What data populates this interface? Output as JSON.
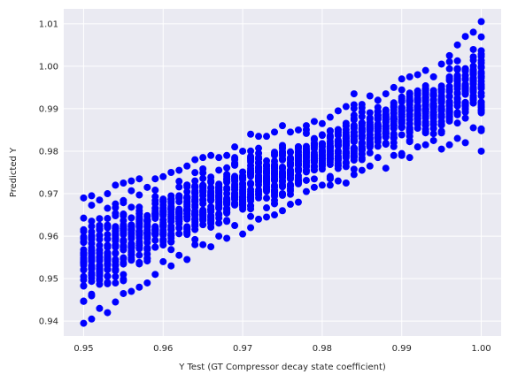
{
  "chart_data": {
    "type": "scatter",
    "title": "",
    "xlabel": "Y Test (GT Compressor decay state coefficient)",
    "ylabel": "Predicted Y",
    "xlim": [
      0.9475,
      1.0025
    ],
    "ylim": [
      0.9365,
      1.0135
    ],
    "xticks": [
      0.95,
      0.96,
      0.97,
      0.98,
      0.99,
      1.0
    ],
    "xtick_labels": [
      "0.95",
      "0.96",
      "0.97",
      "0.98",
      "0.99",
      "1.00"
    ],
    "yticks": [
      0.94,
      0.95,
      0.96,
      0.97,
      0.98,
      0.99,
      1.0,
      1.01
    ],
    "ytick_labels": [
      "0.94",
      "0.95",
      "0.96",
      "0.97",
      "0.98",
      "0.99",
      "1.00",
      "1.01"
    ],
    "grid": true,
    "style": "seaborn-darkgrid",
    "marker_color": "#0000ff",
    "background_color": "#eaeaf2",
    "x_levels": [
      0.95,
      0.951,
      0.952,
      0.953,
      0.954,
      0.955,
      0.956,
      0.957,
      0.958,
      0.959,
      0.96,
      0.961,
      0.962,
      0.963,
      0.964,
      0.965,
      0.966,
      0.967,
      0.968,
      0.969,
      0.97,
      0.971,
      0.972,
      0.973,
      0.974,
      0.975,
      0.976,
      0.977,
      0.978,
      0.979,
      0.98,
      0.981,
      0.982,
      0.983,
      0.984,
      0.985,
      0.986,
      0.987,
      0.988,
      0.989,
      0.99,
      0.991,
      0.992,
      0.993,
      0.994,
      0.995,
      0.996,
      0.997,
      0.998,
      0.999,
      1.0
    ],
    "y_min": [
      0.9395,
      0.9405,
      0.943,
      0.942,
      0.9445,
      0.9465,
      0.947,
      0.948,
      0.949,
      0.951,
      0.954,
      0.953,
      0.9555,
      0.9545,
      0.958,
      0.958,
      0.9575,
      0.96,
      0.9595,
      0.9625,
      0.9605,
      0.962,
      0.964,
      0.9645,
      0.965,
      0.966,
      0.9675,
      0.968,
      0.9705,
      0.9715,
      0.972,
      0.972,
      0.973,
      0.9725,
      0.9745,
      0.9755,
      0.9765,
      0.9785,
      0.976,
      0.979,
      0.979,
      0.9785,
      0.981,
      0.9815,
      0.9825,
      0.9805,
      0.9815,
      0.983,
      0.982,
      0.9855,
      0.98
    ],
    "y_max": [
      0.969,
      0.9695,
      0.9685,
      0.97,
      0.972,
      0.9725,
      0.973,
      0.9735,
      0.9715,
      0.9735,
      0.974,
      0.975,
      0.9755,
      0.9765,
      0.978,
      0.9785,
      0.979,
      0.9785,
      0.979,
      0.981,
      0.98,
      0.984,
      0.9835,
      0.9835,
      0.9845,
      0.986,
      0.9845,
      0.985,
      0.986,
      0.987,
      0.9865,
      0.988,
      0.9895,
      0.9905,
      0.9935,
      0.991,
      0.993,
      0.992,
      0.9935,
      0.995,
      0.997,
      0.9975,
      0.998,
      0.999,
      0.9975,
      1.0005,
      1.0025,
      1.005,
      1.007,
      1.008,
      1.0105
    ]
  }
}
